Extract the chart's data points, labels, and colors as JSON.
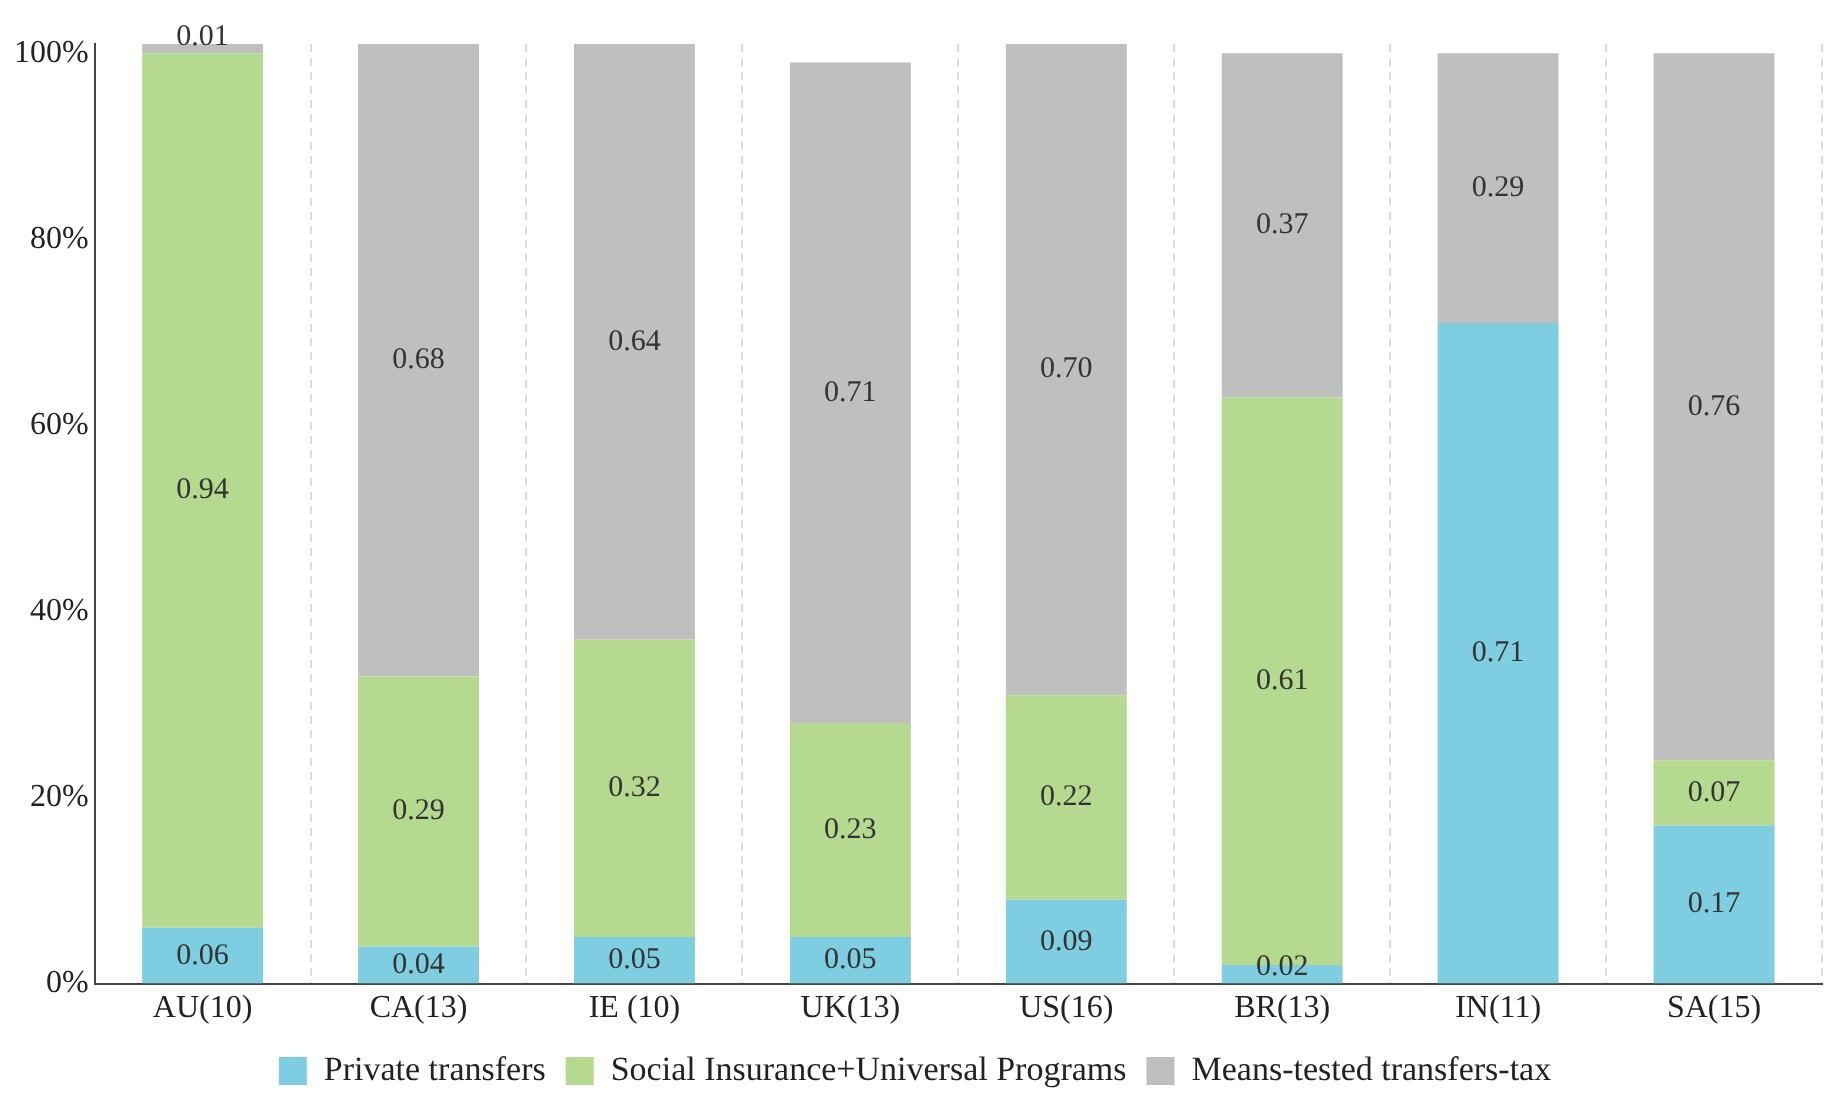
{
  "chart_data": {
    "type": "bar",
    "stacked": true,
    "categories": [
      "AU(10)",
      "CA(13)",
      "IE (10)",
      "UK(13)",
      "US(16)",
      "BR(13)",
      "IN(11)",
      "SA(15)"
    ],
    "series": [
      {
        "name": "Private transfers",
        "color": "#7ecde0",
        "values": [
          0.06,
          0.04,
          0.05,
          0.05,
          0.09,
          0.02,
          0.71,
          0.17
        ],
        "value_labels": [
          "0.06",
          "0.04",
          "0.05",
          "0.05",
          "0.09",
          "0.02",
          "0.71",
          "0.17"
        ]
      },
      {
        "name": "Social Insurance+Universal Programs",
        "color": "#b5d98f",
        "values": [
          0.94,
          0.29,
          0.32,
          0.23,
          0.22,
          0.61,
          0,
          0.07
        ],
        "value_labels": [
          "0.94",
          "0.29",
          "0.32",
          "0.23",
          "0.22",
          "0.61",
          null,
          "0.07"
        ]
      },
      {
        "name": "Means-tested transfers-tax",
        "color": "#bfbfbf",
        "values": [
          0.01,
          0.68,
          0.64,
          0.71,
          0.7,
          0.37,
          0.29,
          0.76
        ],
        "value_labels": [
          "0.01",
          "0.68",
          "0.64",
          "0.71",
          "0.70",
          "0.37",
          "0.29",
          "0.76"
        ]
      }
    ],
    "ylim": [
      0,
      1.01
    ],
    "yticks": [
      {
        "value": 0,
        "label": "0%"
      },
      {
        "value": 0.2,
        "label": "20%"
      },
      {
        "value": 0.4,
        "label": "40%"
      },
      {
        "value": 0.6,
        "label": "60%"
      },
      {
        "value": 0.8,
        "label": "80%"
      },
      {
        "value": 1,
        "label": "100%"
      }
    ],
    "grid": "x",
    "line_style": "dashed",
    "legend": "bottom"
  }
}
